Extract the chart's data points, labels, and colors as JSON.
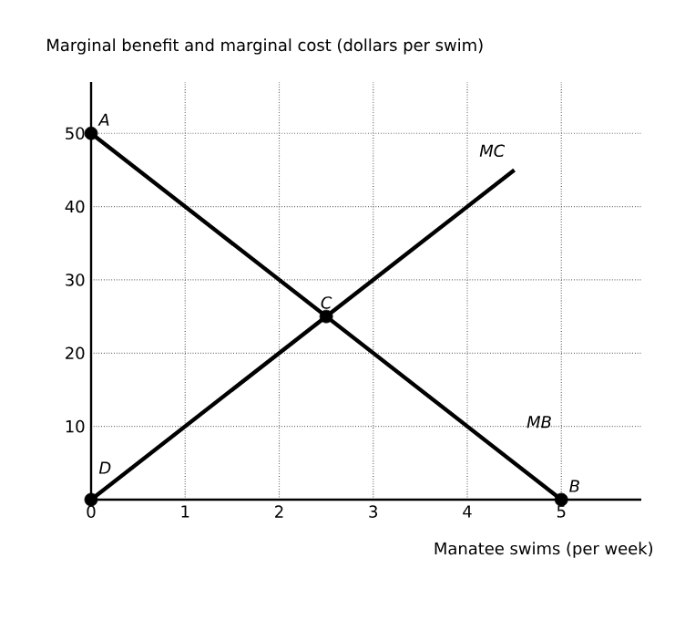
{
  "chart_data": {
    "type": "line",
    "xlabel": "Manatee swims (per week)",
    "ylabel": "Marginal benefit and marginal cost (dollars per swim)",
    "xlim": [
      0,
      5.85
    ],
    "ylim": [
      0,
      57
    ],
    "xticks": [
      0,
      1,
      2,
      3,
      4,
      5
    ],
    "yticks": [
      10,
      20,
      30,
      40,
      50
    ],
    "grid": true,
    "series": [
      {
        "name": "MB",
        "color": "#000000",
        "x": [
          0,
          5
        ],
        "values": [
          50,
          0
        ]
      },
      {
        "name": "MC",
        "color": "#000000",
        "x": [
          0,
          4.5
        ],
        "values": [
          0,
          45
        ]
      },
      {
        "type": "scatter",
        "marker": "circle",
        "color": "#000000",
        "x": [
          0,
          2.5,
          5,
          0
        ],
        "values": [
          50,
          25,
          0,
          0
        ]
      }
    ],
    "annotations": [
      {
        "text": "A",
        "x": 0,
        "y": 50
      },
      {
        "text": "C",
        "x": 2.5,
        "y": 25
      },
      {
        "text": "B",
        "x": 5,
        "y": 0
      },
      {
        "text": "D",
        "x": 0,
        "y": 0
      }
    ]
  }
}
